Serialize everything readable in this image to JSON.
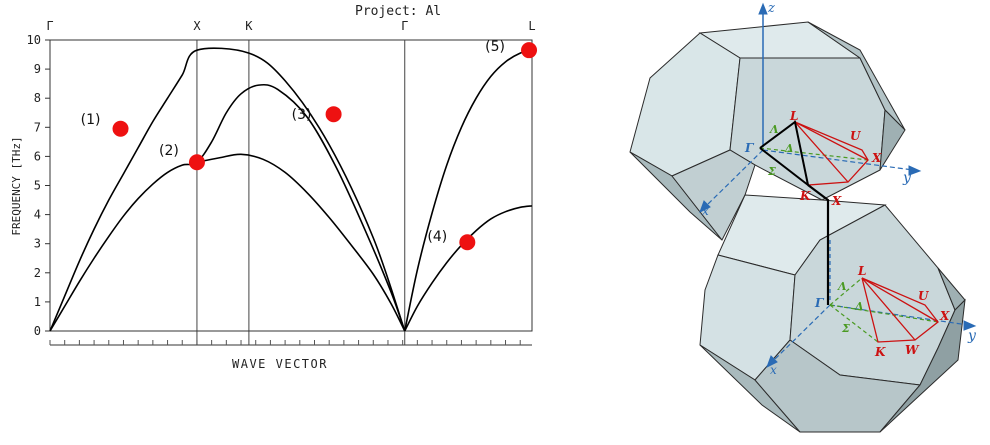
{
  "chart_data": {
    "type": "line",
    "title": "Project: Al",
    "xlabel": "WAVE VECTOR",
    "ylabel": "FREQUENCY [THz]",
    "ylim": [
      0,
      10
    ],
    "yticks": [
      0,
      1,
      2,
      3,
      4,
      5,
      6,
      7,
      8,
      9,
      10
    ],
    "symmetry_points": [
      {
        "label": "Γ",
        "x": 0.0
      },
      {
        "label": "X",
        "x": 1.0
      },
      {
        "label": "K",
        "x": 1.3536
      },
      {
        "label": "Γ",
        "x": 2.4142
      },
      {
        "label": "L",
        "x": 3.2802
      }
    ],
    "series": [
      {
        "values": [
          [
            0,
            0
          ],
          [
            0.1,
            1.2
          ],
          [
            0.2,
            2.4
          ],
          [
            0.3,
            3.5
          ],
          [
            0.4,
            4.5
          ],
          [
            0.5,
            5.4
          ],
          [
            0.6,
            6.3
          ],
          [
            0.7,
            7.2
          ],
          [
            0.8,
            8.0
          ],
          [
            0.9,
            8.8
          ],
          [
            1.0,
            9.65
          ],
          [
            1.3536,
            9.55
          ],
          [
            1.6,
            8.6
          ],
          [
            1.9,
            6.4
          ],
          [
            2.2,
            3.2
          ],
          [
            2.4142,
            0
          ]
        ]
      },
      {
        "values": [
          [
            0,
            0
          ],
          [
            0.1,
            0.85
          ],
          [
            0.2,
            1.7
          ],
          [
            0.3,
            2.5
          ],
          [
            0.4,
            3.25
          ],
          [
            0.5,
            3.95
          ],
          [
            0.6,
            4.55
          ],
          [
            0.7,
            5.05
          ],
          [
            0.8,
            5.45
          ],
          [
            0.9,
            5.7
          ],
          [
            1.0,
            5.8
          ],
          [
            1.1,
            6.5
          ],
          [
            1.2,
            7.5
          ],
          [
            1.3,
            8.15
          ],
          [
            1.42,
            8.45
          ],
          [
            1.55,
            8.3
          ],
          [
            1.75,
            7.35
          ],
          [
            1.95,
            5.6
          ],
          [
            2.15,
            3.4
          ],
          [
            2.32,
            1.35
          ],
          [
            2.4142,
            0
          ]
        ]
      },
      {
        "values": [
          [
            1.0,
            5.8
          ],
          [
            1.15,
            5.95
          ],
          [
            1.3,
            6.07
          ],
          [
            1.45,
            5.9
          ],
          [
            1.6,
            5.45
          ],
          [
            1.75,
            4.75
          ],
          [
            1.9,
            3.9
          ],
          [
            2.05,
            2.95
          ],
          [
            2.2,
            1.95
          ],
          [
            2.32,
            0.95
          ],
          [
            2.4142,
            0
          ]
        ]
      },
      {
        "values": [
          [
            2.4142,
            0
          ],
          [
            2.5,
            2.1
          ],
          [
            2.6,
            4.05
          ],
          [
            2.7,
            5.7
          ],
          [
            2.8,
            7.0
          ],
          [
            2.9,
            8.0
          ],
          [
            3.0,
            8.75
          ],
          [
            3.1,
            9.25
          ],
          [
            3.2,
            9.55
          ],
          [
            3.2802,
            9.65
          ]
        ]
      },
      {
        "values": [
          [
            2.4142,
            0
          ],
          [
            2.5,
            0.85
          ],
          [
            2.6,
            1.65
          ],
          [
            2.7,
            2.35
          ],
          [
            2.8,
            2.95
          ],
          [
            2.9,
            3.45
          ],
          [
            3.0,
            3.85
          ],
          [
            3.1,
            4.1
          ],
          [
            3.2,
            4.25
          ],
          [
            3.2802,
            4.3
          ]
        ]
      }
    ],
    "markers": [
      {
        "label": "(1)",
        "x": 0.48,
        "y": 6.95
      },
      {
        "label": "(2)",
        "x": 1.0,
        "y": 5.8
      },
      {
        "label": "(3)",
        "x": 1.93,
        "y": 7.45
      },
      {
        "label": "(4)",
        "x": 2.84,
        "y": 3.05
      },
      {
        "label": "(5)",
        "x": 3.26,
        "y": 9.65
      }
    ],
    "marker_color": "#ee1111",
    "line_color": "#000000",
    "grid": false
  },
  "diagram": {
    "axis_labels": {
      "z": "z",
      "y_upper": "y",
      "x_upper": "x",
      "y_lower": "y",
      "x_lower": "x"
    },
    "upper_points": [
      "L",
      "U",
      "X",
      "Γ",
      "Λ",
      "Δ",
      "Σ",
      "K",
      "X"
    ],
    "lower_points": [
      "L",
      "U",
      "X",
      "Γ",
      "Λ",
      "Δ",
      "Σ",
      "K",
      "W"
    ],
    "colors": {
      "face": "#c9d7da",
      "face_light": "#dfeaec",
      "face_dark": "#9fb0b3",
      "edge": "#2b2b2b",
      "axis": "#2a6bb5",
      "path_red": "#cc1111",
      "path_green": "#4a9a22",
      "path_black": "#000000"
    }
  }
}
